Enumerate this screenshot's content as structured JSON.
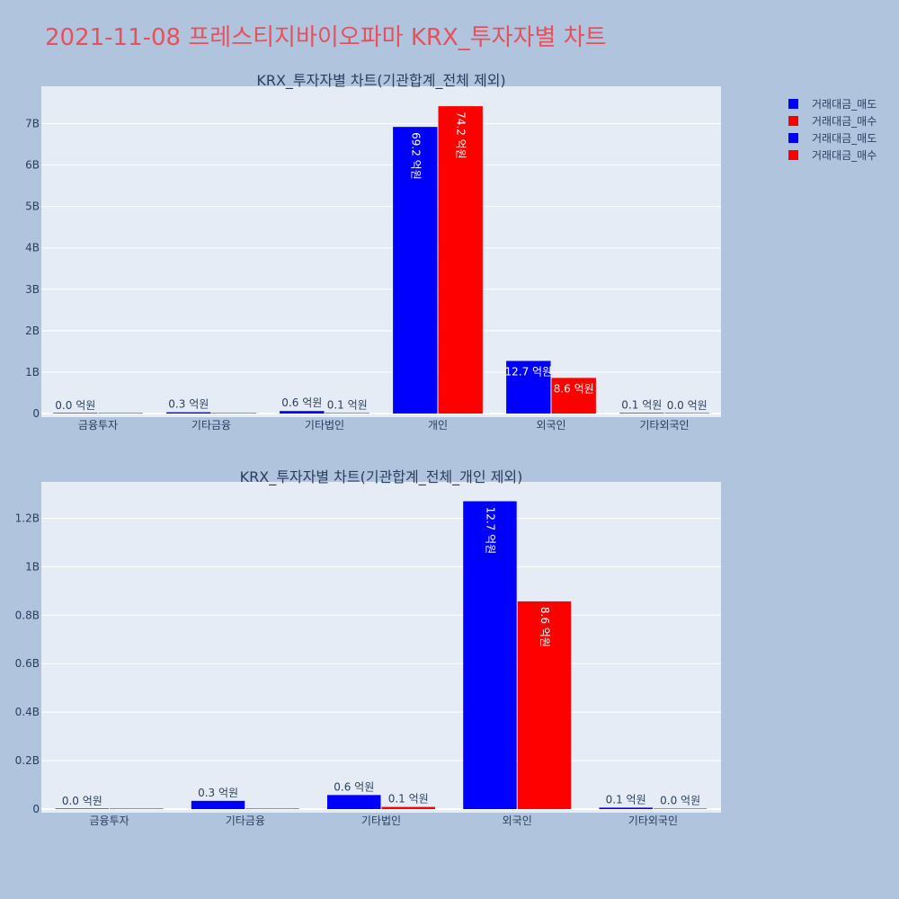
{
  "title": "2021-11-08 프레스티지바이오파마 KRX_투자자별 차트",
  "colors": {
    "title": "#e8505b",
    "sell": "#0000ff",
    "buy": "#ff0000",
    "plot_bg": "#e5ecf6",
    "page_bg": "#b0c4de"
  },
  "legend": [
    {
      "name": "거래대금_매도",
      "color": "#0000ff"
    },
    {
      "name": "거래대금_매수",
      "color": "#ff0000"
    },
    {
      "name": "거래대금_매도",
      "color": "#0000ff"
    },
    {
      "name": "거래대금_매수",
      "color": "#ff0000"
    }
  ],
  "chart_data": [
    {
      "type": "bar",
      "title": "KRX_투자자별 차트(기관합계_전체 제외)",
      "categories": [
        "금융투자",
        "기타금융",
        "기타법인",
        "개인",
        "외국인",
        "기타외국인"
      ],
      "ylim": [
        0,
        7.9
      ],
      "yticks": [
        0,
        1,
        2,
        3,
        4,
        5,
        6,
        7
      ],
      "ytick_labels": [
        "0",
        "1B",
        "2B",
        "3B",
        "4B",
        "5B",
        "6B",
        "7B"
      ],
      "series": [
        {
          "name": "거래대금_매도",
          "color": "#0000ff",
          "values": [
            0.0,
            0.03,
            0.06,
            6.92,
            1.27,
            0.01
          ],
          "labels": [
            "0.0 억원",
            "0.3 억원",
            "0.6 억원",
            "69.2 억원",
            "12.7 억원",
            "0.1 억원"
          ]
        },
        {
          "name": "거래대금_매수",
          "color": "#ff0000",
          "values": [
            0.0,
            0.0,
            0.01,
            7.42,
            0.86,
            0.0
          ],
          "labels": [
            "",
            "",
            "0.1 억원",
            "74.2 억원",
            "8.6 억원",
            "0.0 억원"
          ]
        }
      ]
    },
    {
      "type": "bar",
      "title": "KRX_투자자별 차트(기관합계_전체_개인 제외)",
      "categories": [
        "금융투자",
        "기타금융",
        "기타법인",
        "외국인",
        "기타외국인"
      ],
      "ylim": [
        0,
        1.35
      ],
      "yticks": [
        0,
        0.2,
        0.4,
        0.6,
        0.8,
        1.0,
        1.2
      ],
      "ytick_labels": [
        "0",
        "0.2B",
        "0.4B",
        "0.6B",
        "0.8B",
        "1B",
        "1.2B"
      ],
      "series": [
        {
          "name": "거래대금_매도",
          "color": "#0000ff",
          "values": [
            0.0,
            0.034,
            0.058,
            1.27,
            0.006
          ],
          "labels": [
            "0.0 억원",
            "0.3 억원",
            "0.6 억원",
            "12.7 억원",
            "0.1 억원"
          ]
        },
        {
          "name": "거래대금_매수",
          "color": "#ff0000",
          "values": [
            0.0,
            0.0,
            0.009,
            0.857,
            0.002
          ],
          "labels": [
            "",
            "",
            "0.1 억원",
            "8.6 억원",
            "0.0 억원"
          ]
        }
      ]
    }
  ]
}
